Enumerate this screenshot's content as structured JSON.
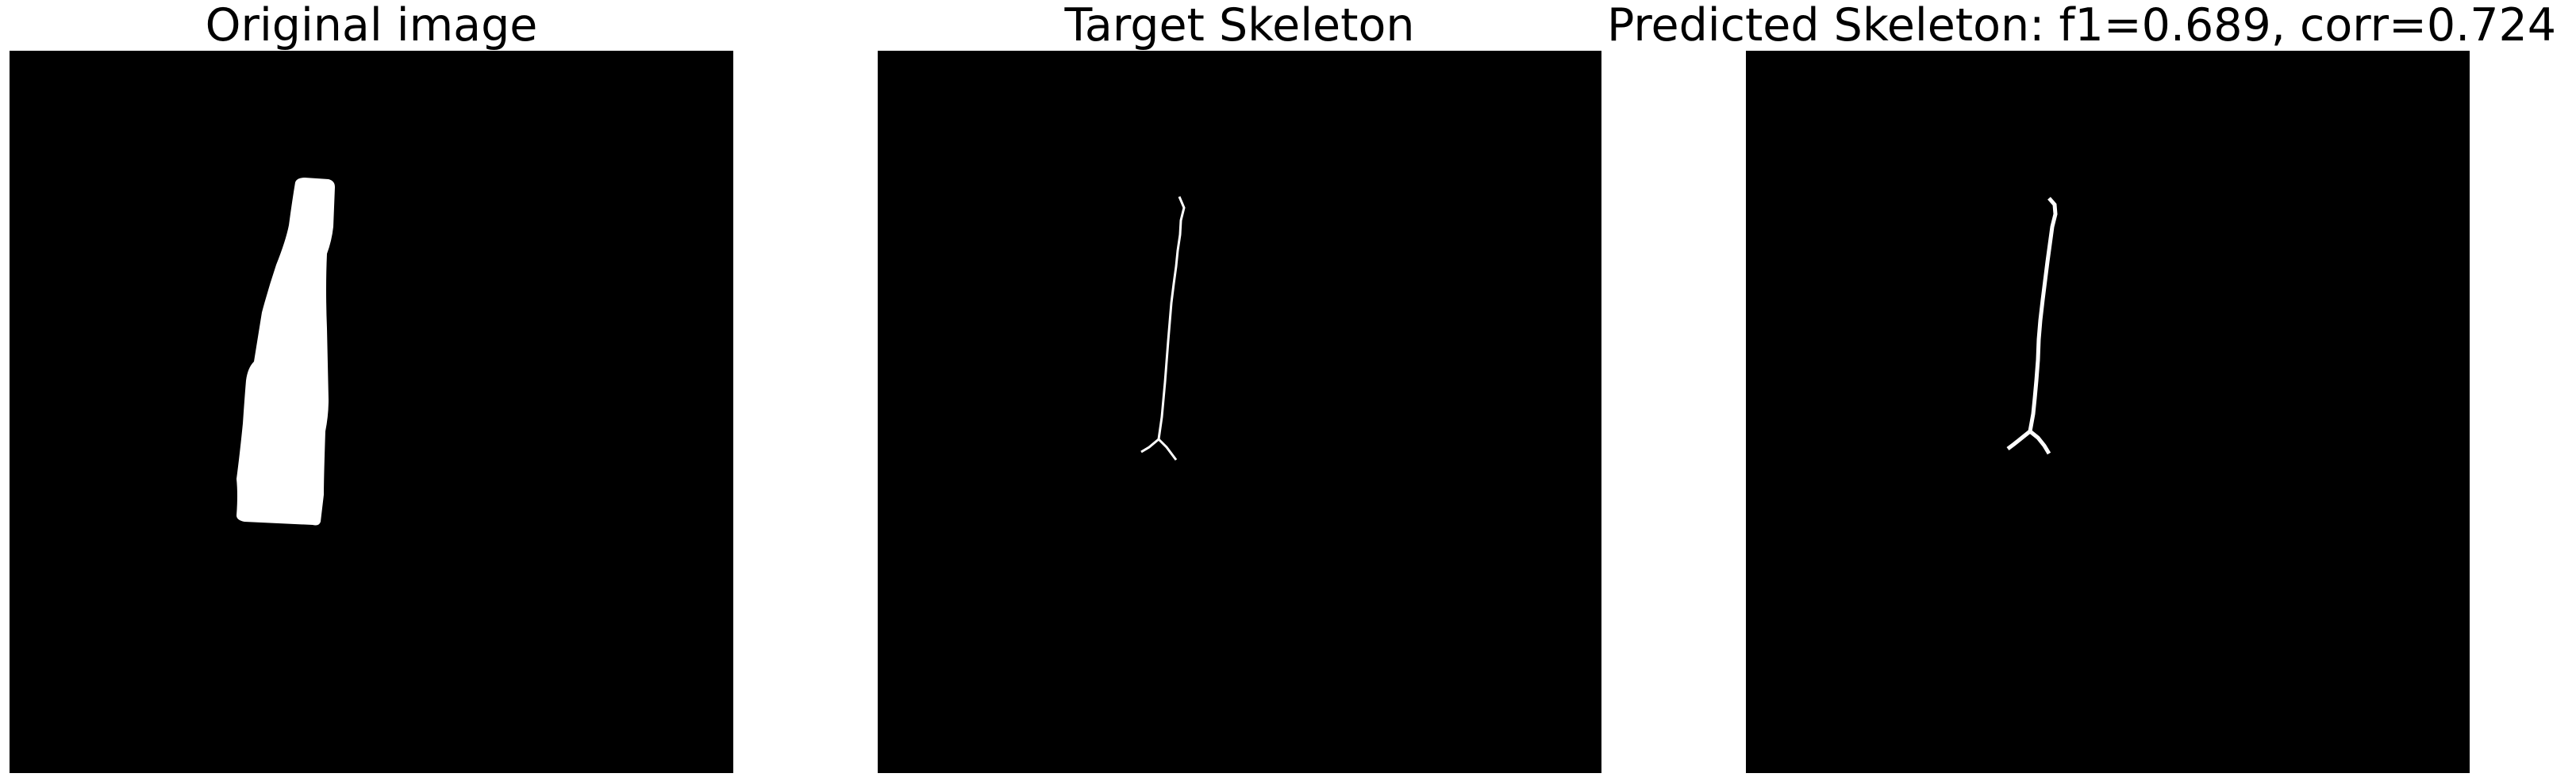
{
  "figure": {
    "panels": [
      {
        "title": "Original image"
      },
      {
        "title": "Target Skeleton"
      },
      {
        "title": "Predicted Skeleton: f1=0.689, corr=0.724"
      }
    ],
    "colors": {
      "background": "#000000",
      "foreground": "#ffffff",
      "figure_background": "#ffffff"
    }
  }
}
